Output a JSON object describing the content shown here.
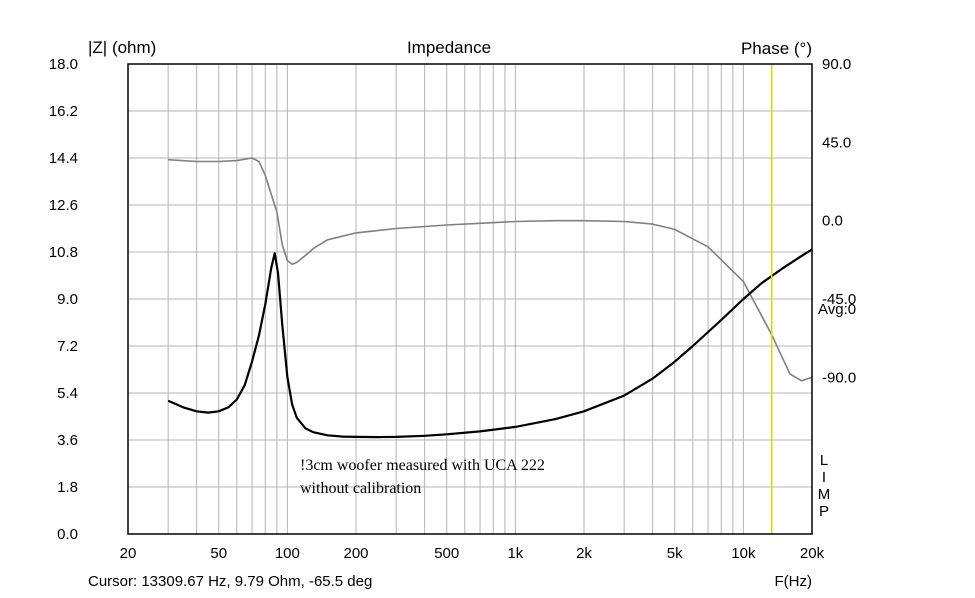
{
  "chart_data": {
    "type": "line",
    "title": "Impedance",
    "ylabel_left": "|Z| (ohm)",
    "ylabel_right": "Phase (°)",
    "xlabel": "F(Hz)",
    "x_scale": "log",
    "xlim": [
      20,
      20000
    ],
    "ylim_left": [
      0,
      18
    ],
    "ylim_right": [
      -180,
      90
    ],
    "x_ticks": [
      {
        "v": 20,
        "label": "20"
      },
      {
        "v": 50,
        "label": "50"
      },
      {
        "v": 100,
        "label": "100"
      },
      {
        "v": 200,
        "label": "200"
      },
      {
        "v": 500,
        "label": "500"
      },
      {
        "v": 1000,
        "label": "1k"
      },
      {
        "v": 2000,
        "label": "2k"
      },
      {
        "v": 5000,
        "label": "5k"
      },
      {
        "v": 10000,
        "label": "10k"
      },
      {
        "v": 20000,
        "label": "20k"
      }
    ],
    "y_ticks_left": [
      "0.0",
      "1.8",
      "3.6",
      "5.4",
      "7.2",
      "9.0",
      "10.8",
      "12.6",
      "14.4",
      "16.2",
      "18.0"
    ],
    "y_ticks_right": [
      {
        "v": 90,
        "label": "90.0"
      },
      {
        "v": 45,
        "label": "45.0"
      },
      {
        "v": 0,
        "label": "0.0"
      },
      {
        "v": -45,
        "label": "-45.0"
      },
      {
        "v": -90,
        "label": "-90.0"
      }
    ],
    "right_avg_label": "Avg:0",
    "legend_vertical": "LIMP",
    "annotation_lines": [
      "!3cm woofer measured with UCA 222",
      "without calibration"
    ],
    "cursor_text": "Cursor: 13309.67 Hz, 9.79 Ohm, -65.5 deg",
    "cursor_freq": 13309.67,
    "colors": {
      "impedance": "#000000",
      "phase": "#808080",
      "grid": "#b4b4b4",
      "cursor": "#d8d800",
      "frame": "#000000"
    },
    "series": [
      {
        "quantity": "impedance",
        "axis": "left",
        "x": [
          30,
          35,
          40,
          45,
          50,
          55,
          60,
          65,
          70,
          75,
          80,
          85,
          88,
          91,
          95,
          100,
          105,
          110,
          120,
          130,
          150,
          175,
          200,
          250,
          300,
          400,
          500,
          700,
          1000,
          1500,
          2000,
          3000,
          4000,
          5000,
          6000,
          8000,
          10000,
          12000,
          15000,
          18000,
          20000
        ],
        "y": [
          5.1,
          4.85,
          4.7,
          4.65,
          4.7,
          4.85,
          5.15,
          5.7,
          6.6,
          7.6,
          8.8,
          10.2,
          10.75,
          10.0,
          8.0,
          6.0,
          4.95,
          4.45,
          4.05,
          3.9,
          3.78,
          3.73,
          3.72,
          3.71,
          3.72,
          3.76,
          3.82,
          3.93,
          4.1,
          4.4,
          4.7,
          5.3,
          5.95,
          6.6,
          7.2,
          8.2,
          9.0,
          9.6,
          10.2,
          10.65,
          10.9
        ]
      },
      {
        "quantity": "phase",
        "axis": "right",
        "x": [
          30,
          40,
          50,
          60,
          70,
          75,
          80,
          85,
          90,
          95,
          100,
          105,
          110,
          120,
          130,
          150,
          200,
          300,
          500,
          700,
          1000,
          1500,
          2000,
          3000,
          4000,
          5000,
          7000,
          10000,
          13309.67,
          16000,
          18000,
          20000
        ],
        "y": [
          35,
          34,
          34,
          34.5,
          36,
          34,
          26,
          15,
          5,
          -14,
          -23,
          -25,
          -24,
          -20,
          -16,
          -11,
          -7,
          -4.5,
          -2.5,
          -1.5,
          -0.5,
          0,
          0,
          -0.5,
          -2,
          -5,
          -15,
          -35,
          -65.5,
          -88,
          -92,
          -90
        ]
      }
    ]
  }
}
